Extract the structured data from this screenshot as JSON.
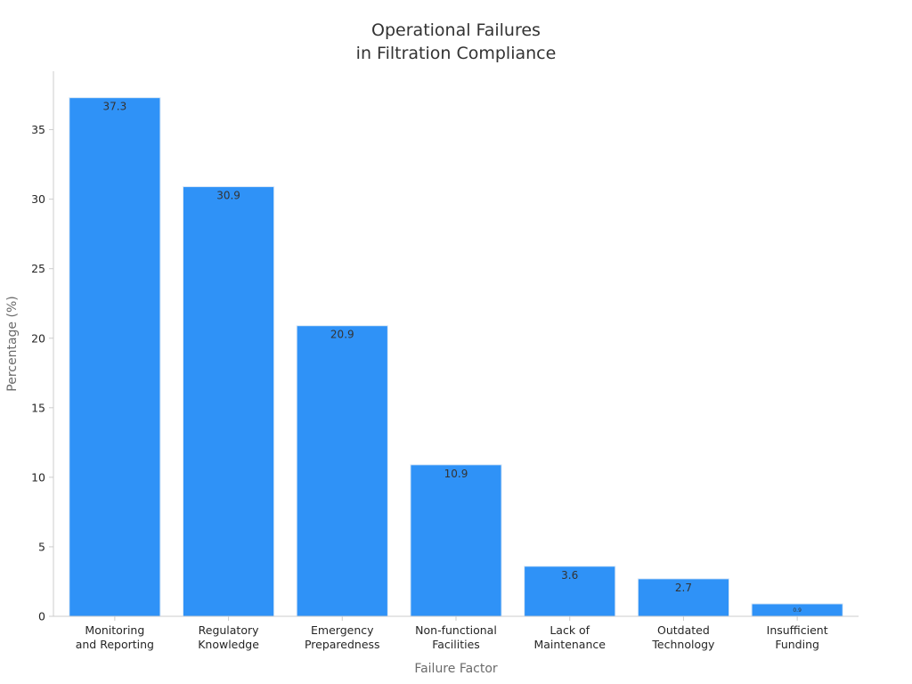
{
  "chart_data": {
    "type": "bar",
    "title": [
      "Operational Failures",
      "in Filtration Compliance"
    ],
    "xlabel": "Failure Factor",
    "ylabel": "Percentage (%)",
    "categories": [
      [
        "Monitoring",
        "and Reporting"
      ],
      [
        "Regulatory",
        "Knowledge"
      ],
      [
        "Emergency",
        "Preparedness"
      ],
      [
        "Non-functional",
        "Facilities"
      ],
      [
        "Lack of",
        "Maintenance"
      ],
      [
        "Outdated",
        "Technology"
      ],
      [
        "Insufficient",
        "Funding"
      ]
    ],
    "values": [
      37.3,
      30.9,
      20.9,
      10.9,
      3.6,
      2.7,
      0.9
    ],
    "data_labels": [
      "37.3",
      "30.9",
      "20.9",
      "10.9",
      "3.6",
      "2.7",
      "0.9"
    ],
    "ylim": [
      0,
      39.2
    ],
    "yticks": [
      0,
      5,
      10,
      15,
      20,
      25,
      30,
      35
    ],
    "grid": false,
    "legend": "none",
    "colors": {
      "bar": "#2f92f7",
      "bar_edge": "#dbe9f7",
      "axis": "#cccccc",
      "text": "#333333",
      "axis_label": "#6b6b6b"
    }
  }
}
